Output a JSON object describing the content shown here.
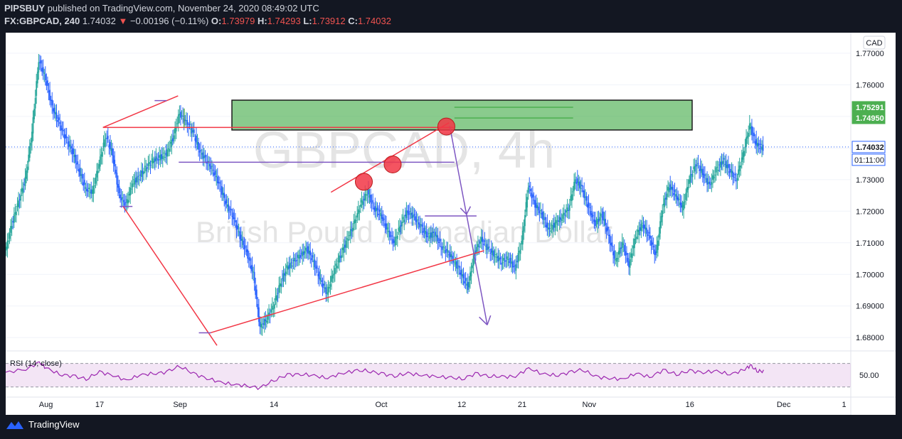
{
  "header": {
    "publisher": "PIPSBUY",
    "published_text": "published on TradingView.com, November 24, 2020 08:49:02 UTC",
    "symbol": "FX:GBPCAD, 240",
    "last": "1.74032",
    "change": "−0.00196 (−0.11%)",
    "o_label": "O:",
    "o": "1.73979",
    "h_label": "H:",
    "h": "1.74293",
    "l_label": "L:",
    "l": "1.73912",
    "c_label": "C:",
    "c": "1.74032"
  },
  "watermark": {
    "symbol": "GBPCAD, 4h",
    "name": "British Pound / Canadian Dollar"
  },
  "footer": {
    "brand": "TradingView"
  },
  "colors": {
    "up": "#26a69a",
    "down": "#2962ff",
    "accent_red": "#f23645",
    "purple": "#7e57c2",
    "green_zone": "#4caf50",
    "rsi": "#9c27b0"
  },
  "chart_data": {
    "type": "candlestick",
    "currency_label": "CAD",
    "yticks": [
      "1.77000",
      "1.76000",
      "1.75000",
      "1.74000",
      "1.73000",
      "1.72000",
      "1.71000",
      "1.70000",
      "1.69000",
      "1.68000"
    ],
    "ylim": [
      1.676,
      1.7765
    ],
    "xticks": [
      {
        "label": "Aug",
        "t": 6
      },
      {
        "label": "17",
        "t": 14
      },
      {
        "label": "Sep",
        "t": 26
      },
      {
        "label": "14",
        "t": 40
      },
      {
        "label": "Oct",
        "t": 56
      },
      {
        "label": "12",
        "t": 68
      },
      {
        "label": "21",
        "t": 77
      },
      {
        "label": "Nov",
        "t": 87
      },
      {
        "label": "16",
        "t": 102
      },
      {
        "label": "Dec",
        "t": 116
      },
      {
        "label": "1",
        "t": 125
      }
    ],
    "xlim": [
      0,
      126
    ],
    "close_path": [
      [
        0,
        1.707
      ],
      [
        1,
        1.716
      ],
      [
        2,
        1.723
      ],
      [
        3,
        1.73
      ],
      [
        4,
        1.745
      ],
      [
        5,
        1.768
      ],
      [
        6,
        1.762
      ],
      [
        7,
        1.753
      ],
      [
        8,
        1.748
      ],
      [
        9,
        1.743
      ],
      [
        10,
        1.739
      ],
      [
        11,
        1.733
      ],
      [
        12,
        1.727
      ],
      [
        13,
        1.726
      ],
      [
        14,
        1.735
      ],
      [
        15,
        1.744
      ],
      [
        16,
        1.738
      ],
      [
        17,
        1.725
      ],
      [
        18,
        1.722
      ],
      [
        19,
        1.729
      ],
      [
        20,
        1.731
      ],
      [
        21,
        1.734
      ],
      [
        22,
        1.736
      ],
      [
        23,
        1.737
      ],
      [
        24,
        1.738
      ],
      [
        25,
        1.743
      ],
      [
        26,
        1.751
      ],
      [
        27,
        1.748
      ],
      [
        28,
        1.745
      ],
      [
        29,
        1.739
      ],
      [
        30,
        1.736
      ],
      [
        31,
        1.733
      ],
      [
        32,
        1.728
      ],
      [
        33,
        1.722
      ],
      [
        34,
        1.718
      ],
      [
        35,
        1.712
      ],
      [
        36,
        1.707
      ],
      [
        37,
        1.7
      ],
      [
        38,
        1.683
      ],
      [
        39,
        1.686
      ],
      [
        40,
        1.69
      ],
      [
        41,
        1.697
      ],
      [
        42,
        1.702
      ],
      [
        43,
        1.704
      ],
      [
        44,
        1.706
      ],
      [
        45,
        1.708
      ],
      [
        46,
        1.704
      ],
      [
        47,
        1.698
      ],
      [
        48,
        1.694
      ],
      [
        49,
        1.701
      ],
      [
        50,
        1.706
      ],
      [
        51,
        1.711
      ],
      [
        52,
        1.716
      ],
      [
        53,
        1.722
      ],
      [
        54,
        1.726
      ],
      [
        55,
        1.721
      ],
      [
        56,
        1.719
      ],
      [
        57,
        1.714
      ],
      [
        58,
        1.71
      ],
      [
        59,
        1.716
      ],
      [
        60,
        1.72
      ],
      [
        61,
        1.718
      ],
      [
        62,
        1.715
      ],
      [
        63,
        1.712
      ],
      [
        64,
        1.713
      ],
      [
        65,
        1.709
      ],
      [
        66,
        1.707
      ],
      [
        67,
        1.704
      ],
      [
        68,
        1.7
      ],
      [
        69,
        1.696
      ],
      [
        70,
        1.707
      ],
      [
        71,
        1.711
      ],
      [
        72,
        1.708
      ],
      [
        73,
        1.706
      ],
      [
        74,
        1.704
      ],
      [
        75,
        1.705
      ],
      [
        76,
        1.702
      ],
      [
        77,
        1.71
      ],
      [
        78,
        1.728
      ],
      [
        79,
        1.722
      ],
      [
        80,
        1.719
      ],
      [
        81,
        1.714
      ],
      [
        82,
        1.716
      ],
      [
        83,
        1.718
      ],
      [
        84,
        1.721
      ],
      [
        85,
        1.73
      ],
      [
        86,
        1.727
      ],
      [
        87,
        1.721
      ],
      [
        88,
        1.716
      ],
      [
        89,
        1.719
      ],
      [
        90,
        1.712
      ],
      [
        91,
        1.704
      ],
      [
        92,
        1.71
      ],
      [
        93,
        1.703
      ],
      [
        94,
        1.712
      ],
      [
        95,
        1.716
      ],
      [
        96,
        1.712
      ],
      [
        97,
        1.706
      ],
      [
        98,
        1.721
      ],
      [
        99,
        1.728
      ],
      [
        100,
        1.725
      ],
      [
        101,
        1.721
      ],
      [
        102,
        1.73
      ],
      [
        103,
        1.735
      ],
      [
        104,
        1.732
      ],
      [
        105,
        1.728
      ],
      [
        106,
        1.733
      ],
      [
        107,
        1.736
      ],
      [
        108,
        1.733
      ],
      [
        109,
        1.73
      ],
      [
        110,
        1.738
      ],
      [
        111,
        1.747
      ],
      [
        112,
        1.741
      ],
      [
        113,
        1.74
      ]
    ],
    "price_labels": [
      {
        "value": 1.75291,
        "text": "1.75291"
      },
      {
        "value": 1.7495,
        "text": "1.74950"
      },
      {
        "value": 1.74032,
        "text": "1.74032"
      }
    ],
    "countdown": "01:11:00",
    "rsi": {
      "label": "RSI (14, close)",
      "tick": "50.00",
      "upper": 70,
      "lower": 30,
      "values": [
        [
          0,
          55
        ],
        [
          3,
          60
        ],
        [
          5,
          72
        ],
        [
          6,
          62
        ],
        [
          8,
          52
        ],
        [
          10,
          48
        ],
        [
          12,
          44
        ],
        [
          14,
          55
        ],
        [
          16,
          50
        ],
        [
          18,
          41
        ],
        [
          20,
          50
        ],
        [
          22,
          53
        ],
        [
          24,
          55
        ],
        [
          26,
          66
        ],
        [
          28,
          52
        ],
        [
          30,
          45
        ],
        [
          32,
          38
        ],
        [
          34,
          34
        ],
        [
          36,
          32
        ],
        [
          38,
          28
        ],
        [
          40,
          42
        ],
        [
          42,
          50
        ],
        [
          44,
          52
        ],
        [
          46,
          49
        ],
        [
          48,
          45
        ],
        [
          50,
          53
        ],
        [
          52,
          57
        ],
        [
          54,
          58
        ],
        [
          56,
          52
        ],
        [
          58,
          49
        ],
        [
          60,
          53
        ],
        [
          62,
          50
        ],
        [
          64,
          48
        ],
        [
          66,
          46
        ],
        [
          68,
          44
        ],
        [
          70,
          52
        ],
        [
          72,
          49
        ],
        [
          74,
          47
        ],
        [
          76,
          48
        ],
        [
          78,
          62
        ],
        [
          80,
          52
        ],
        [
          82,
          50
        ],
        [
          84,
          54
        ],
        [
          86,
          60
        ],
        [
          88,
          47
        ],
        [
          90,
          45
        ],
        [
          92,
          43
        ],
        [
          94,
          53
        ],
        [
          96,
          47
        ],
        [
          98,
          58
        ],
        [
          100,
          52
        ],
        [
          102,
          57
        ],
        [
          104,
          55
        ],
        [
          106,
          57
        ],
        [
          108,
          51
        ],
        [
          110,
          59
        ],
        [
          111,
          66
        ],
        [
          112,
          58
        ],
        [
          113,
          56
        ]
      ]
    }
  }
}
